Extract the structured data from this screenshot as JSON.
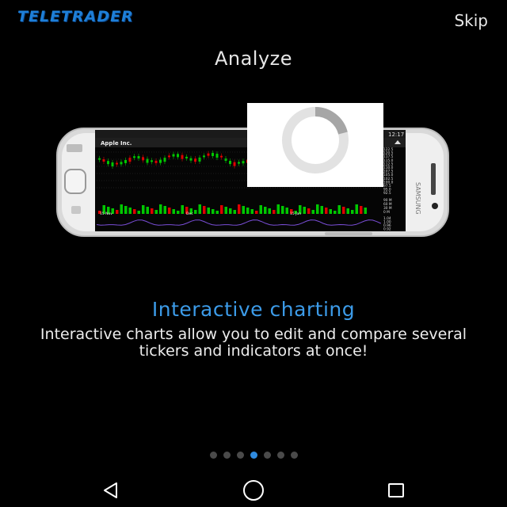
{
  "app": {
    "logo_text": "TELETRADER",
    "skip_label": "Skip"
  },
  "slide": {
    "title": "Analyze",
    "feature_title": "Interactive charting",
    "feature_description": "Interactive charts allow you to edit and compare several tickers and indicators at once!"
  },
  "phone_screen": {
    "instrument": "Apple Inc.",
    "time": "12:17",
    "price_ticks": [
      "122.5",
      "120.5",
      "117.5",
      "115.0",
      "112.5",
      "110.0",
      "107.5",
      "105.0",
      "102.5",
      "100.0",
      "97.5",
      "95.0",
      "92.5"
    ],
    "volume_ticks": [
      "90 M",
      "60 M",
      "30 M",
      "0 M"
    ],
    "indicator_ticks": [
      "1.04",
      "1.00",
      "0.96",
      "0.92"
    ],
    "date_labels": [
      "15 Nov",
      "Dec",
      "15 Jan"
    ],
    "brand": "SAMSUNG"
  },
  "pagination": {
    "total": 7,
    "active_index": 3
  },
  "icons": {
    "back": "back-triangle-icon",
    "home": "home-circle-icon",
    "recents": "recents-square-icon"
  },
  "colors": {
    "logo": "#1e7fd8",
    "accent": "#3c9be8",
    "active_dot": "#2f8be0",
    "candle_up": "#00c800",
    "candle_down": "#e00000"
  }
}
